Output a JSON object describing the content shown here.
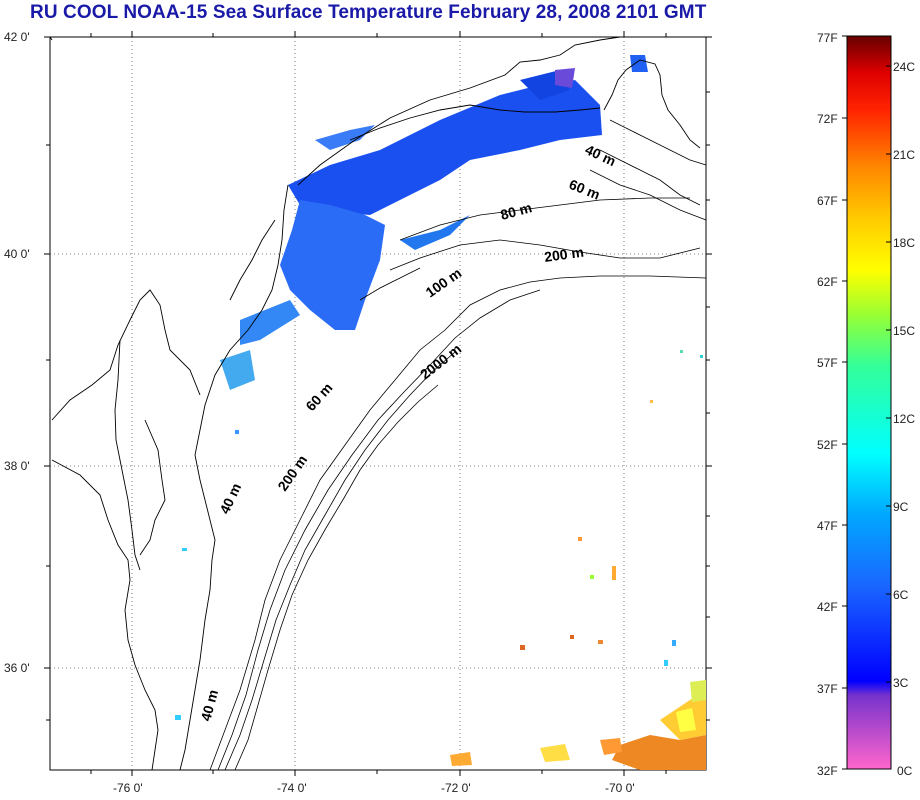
{
  "title": "RU COOL  NOAA-15 Sea Surface Temperature February 28, 2008 2101 GMT",
  "axes": {
    "lat_labels": [
      "42 0'",
      "40 0'",
      "38 0'",
      "36 0'"
    ],
    "lon_labels": [
      "-76 0'",
      "-74 0'",
      "-72 0'",
      "-70 0'"
    ]
  },
  "isobaths": [
    "40 m",
    "60 m",
    "80 m",
    "200 m",
    "100 m",
    "2000 m",
    "60 m",
    "200 m",
    "40 m",
    "40 m"
  ],
  "colorbar": {
    "fahrenheit": [
      "77F",
      "72F",
      "67F",
      "62F",
      "57F",
      "52F",
      "47F",
      "42F",
      "37F",
      "32F"
    ],
    "celsius": [
      "24C",
      "21C",
      "18C",
      "15C",
      "12C",
      "9C",
      "6C",
      "3C",
      "0C"
    ]
  },
  "colors": {
    "title": "#1a1aa8",
    "cold_water": "#2255ee",
    "warm_water": "#ee8822"
  }
}
